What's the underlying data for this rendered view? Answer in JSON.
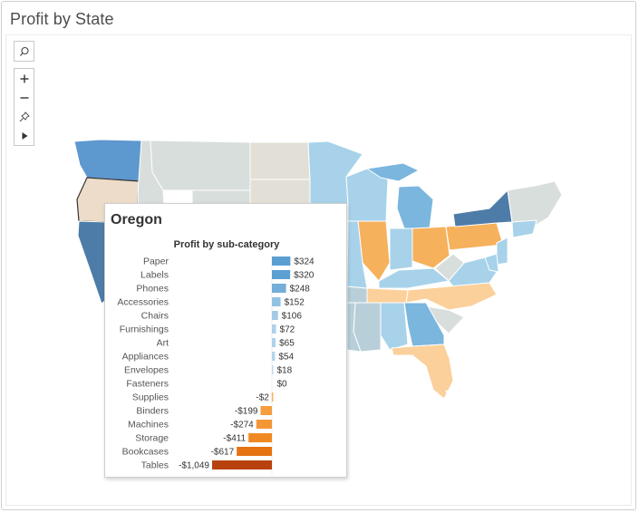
{
  "title": "Profit by State",
  "tooltip": {
    "state": "Oregon",
    "subtitle": "Profit by sub-category"
  },
  "toolbar": {
    "search_icon": "magnifier-icon",
    "zoom_in_icon": "plus-icon",
    "zoom_out_icon": "minus-icon",
    "pin_icon": "pin-icon",
    "play_icon": "play-icon"
  },
  "chart_data": {
    "type": "bar",
    "title": "Profit by sub-category",
    "categories": [
      "Paper",
      "Labels",
      "Phones",
      "Accessories",
      "Chairs",
      "Furnishings",
      "Art",
      "Appliances",
      "Envelopes",
      "Fasteners",
      "Supplies",
      "Binders",
      "Machines",
      "Storage",
      "Bookcases",
      "Tables"
    ],
    "values": [
      324,
      320,
      248,
      152,
      106,
      72,
      65,
      54,
      18,
      0,
      -2,
      -199,
      -274,
      -411,
      -617,
      -1049
    ],
    "value_labels": [
      "$324",
      "$320",
      "$248",
      "$152",
      "$106",
      "$72",
      "$65",
      "$54",
      "$18",
      "$0",
      "-$2",
      "-$199",
      "-$274",
      "-$411",
      "-$617",
      "-$1,049"
    ],
    "xlabel": "",
    "ylabel": "",
    "grid": false,
    "colors": {
      "positive_dark": "#5b9fd2",
      "positive_light": "#c4dff0",
      "negative_light": "#f6b15c",
      "negative_mid": "#f07e13",
      "negative_dark": "#b8420e"
    }
  }
}
